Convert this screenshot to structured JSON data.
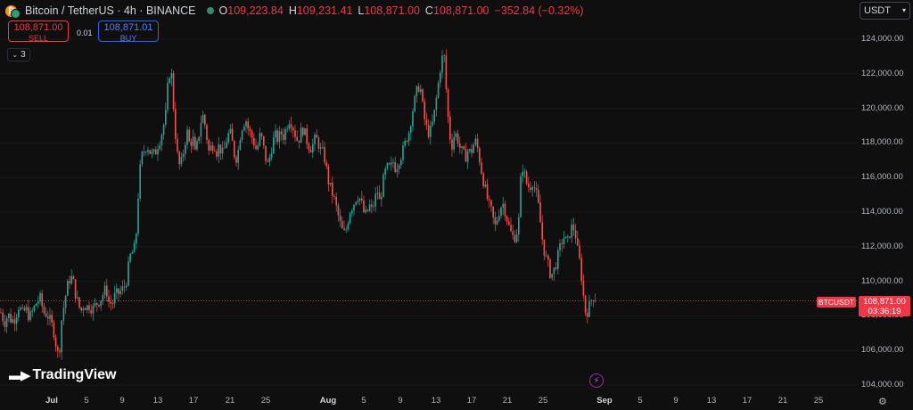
{
  "header": {
    "symbol": "Bitcoin / TetherUS · 4h · BINANCE",
    "open_key": "O",
    "open": "109,223.84",
    "high_key": "H",
    "high": "109,231.41",
    "low_key": "L",
    "low": "108,871.00",
    "close_key": "C",
    "close": "108,871.00",
    "change": "−352.84 (−0.32%)"
  },
  "trade": {
    "sell_price": "108,871.00",
    "sell_label": "SELL",
    "spread": "0.01",
    "buy_price": "108,871.01",
    "buy_label": "BUY"
  },
  "indicators_count": "3",
  "currency": "USDT",
  "price_tag": {
    "symbol": "BTCUSDT",
    "price": "108,871.00",
    "countdown": "03:36:19"
  },
  "logo_text": "TradingView",
  "colors": {
    "up": "#26a69a",
    "down": "#ef5350",
    "background": "#0f0f0f"
  },
  "chart_data": {
    "type": "candlestick",
    "y_ticks": [
      "124,000.00",
      "122,000.00",
      "120,000.00",
      "118,000.00",
      "116,000.00",
      "114,000.00",
      "112,000.00",
      "110,000.00",
      "108,000.00",
      "106,000.00",
      "104,000.00"
    ],
    "ylim": [
      104000,
      125000
    ],
    "x_ticks": [
      {
        "label": "Jul",
        "bold": true
      },
      {
        "label": "5"
      },
      {
        "label": "9"
      },
      {
        "label": "13"
      },
      {
        "label": "17"
      },
      {
        "label": "21"
      },
      {
        "label": "25"
      },
      {
        "label": "Aug",
        "bold": true
      },
      {
        "label": "5"
      },
      {
        "label": "9"
      },
      {
        "label": "13"
      },
      {
        "label": "17"
      },
      {
        "label": "21"
      },
      {
        "label": "25"
      },
      {
        "label": "Sep",
        "bold": true
      },
      {
        "label": "5"
      },
      {
        "label": "9"
      },
      {
        "label": "13"
      },
      {
        "label": "17"
      },
      {
        "label": "21"
      },
      {
        "label": "25"
      }
    ],
    "last_price": 108871,
    "close_path": [
      [
        1,
        108200
      ],
      [
        5,
        107600
      ],
      [
        9,
        108100
      ],
      [
        13,
        107700
      ],
      [
        17,
        107900
      ],
      [
        21,
        108600
      ],
      [
        25,
        108100
      ],
      [
        29,
        108400
      ],
      [
        33,
        107900
      ],
      [
        37,
        108300
      ],
      [
        41,
        108800
      ],
      [
        45,
        109000
      ],
      [
        49,
        108200
      ],
      [
        53,
        108100
      ],
      [
        57,
        107600
      ],
      [
        60,
        107200
      ],
      [
        63,
        106300
      ],
      [
        66,
        105500
      ],
      [
        69,
        107700
      ],
      [
        72,
        108700
      ],
      [
        75,
        109600
      ],
      [
        79,
        110300
      ],
      [
        82,
        110000
      ],
      [
        85,
        109200
      ],
      [
        88,
        108600
      ],
      [
        91,
        108300
      ],
      [
        94,
        108700
      ],
      [
        97,
        108500
      ],
      [
        100,
        108600
      ],
      [
        104,
        108400
      ],
      [
        108,
        108700
      ],
      [
        112,
        108900
      ],
      [
        116,
        109300
      ],
      [
        119,
        109600
      ],
      [
        122,
        108800
      ],
      [
        126,
        108700
      ],
      [
        129,
        109200
      ],
      [
        133,
        109300
      ],
      [
        137,
        109500
      ],
      [
        141,
        109800
      ],
      [
        144,
        110800
      ],
      [
        147,
        111700
      ],
      [
        150,
        111600
      ],
      [
        153,
        112900
      ],
      [
        156,
        116000
      ],
      [
        159,
        117200
      ],
      [
        162,
        117600
      ],
      [
        165,
        117900
      ],
      [
        168,
        117500
      ],
      [
        171,
        117300
      ],
      [
        174,
        117400
      ],
      [
        177,
        117900
      ],
      [
        180,
        118300
      ],
      [
        183,
        118900
      ],
      [
        186,
        119700
      ],
      [
        189,
        121900
      ],
      [
        192,
        122200
      ],
      [
        195,
        119800
      ],
      [
        198,
        117600
      ],
      [
        201,
        116700
      ],
      [
        204,
        116900
      ],
      [
        207,
        118000
      ],
      [
        210,
        118600
      ],
      [
        213,
        117800
      ],
      [
        216,
        118400
      ],
      [
        219,
        117300
      ],
      [
        222,
        118100
      ],
      [
        225,
        119200
      ],
      [
        228,
        119600
      ],
      [
        231,
        118700
      ],
      [
        234,
        117500
      ],
      [
        237,
        117800
      ],
      [
        240,
        118000
      ],
      [
        243,
        117500
      ],
      [
        246,
        117900
      ],
      [
        249,
        117300
      ],
      [
        252,
        117700
      ],
      [
        255,
        118400
      ],
      [
        258,
        118600
      ],
      [
        261,
        117900
      ],
      [
        264,
        117000
      ],
      [
        267,
        117500
      ],
      [
        270,
        118700
      ],
      [
        273,
        119200
      ],
      [
        276,
        119300
      ],
      [
        279,
        118700
      ],
      [
        282,
        118400
      ],
      [
        285,
        118000
      ],
      [
        288,
        117500
      ],
      [
        291,
        118400
      ],
      [
        294,
        118200
      ],
      [
        297,
        117300
      ],
      [
        300,
        116700
      ],
      [
        303,
        117300
      ],
      [
        306,
        118100
      ],
      [
        309,
        118400
      ],
      [
        312,
        118200
      ],
      [
        315,
        118600
      ],
      [
        318,
        118400
      ],
      [
        321,
        118900
      ],
      [
        324,
        119400
      ],
      [
        327,
        119200
      ],
      [
        330,
        118700
      ],
      [
        333,
        118200
      ],
      [
        336,
        118300
      ],
      [
        339,
        118900
      ],
      [
        342,
        118500
      ],
      [
        345,
        118000
      ],
      [
        348,
        117700
      ],
      [
        351,
        117900
      ],
      [
        354,
        118300
      ],
      [
        357,
        118000
      ],
      [
        360,
        117500
      ],
      [
        363,
        117400
      ],
      [
        366,
        116500
      ],
      [
        369,
        115600
      ],
      [
        372,
        115200
      ],
      [
        375,
        114700
      ],
      [
        378,
        114100
      ],
      [
        381,
        113400
      ],
      [
        384,
        112900
      ],
      [
        387,
        112700
      ],
      [
        390,
        113500
      ],
      [
        393,
        114200
      ],
      [
        396,
        114400
      ],
      [
        399,
        114800
      ],
      [
        402,
        115000
      ],
      [
        405,
        114600
      ],
      [
        408,
        114000
      ],
      [
        411,
        113800
      ],
      [
        414,
        114400
      ],
      [
        417,
        114100
      ],
      [
        420,
        114600
      ],
      [
        423,
        115300
      ],
      [
        426,
        114500
      ],
      [
        429,
        115600
      ],
      [
        432,
        116300
      ],
      [
        435,
        116600
      ],
      [
        438,
        116500
      ],
      [
        441,
        116900
      ],
      [
        444,
        116500
      ],
      [
        447,
        117000
      ],
      [
        450,
        117300
      ],
      [
        453,
        117700
      ],
      [
        456,
        118300
      ],
      [
        459,
        118700
      ],
      [
        462,
        119700
      ],
      [
        465,
        120400
      ],
      [
        468,
        121100
      ],
      [
        471,
        121400
      ],
      [
        474,
        120100
      ],
      [
        477,
        119100
      ],
      [
        480,
        118600
      ],
      [
        483,
        118700
      ],
      [
        486,
        119300
      ],
      [
        489,
        120400
      ],
      [
        492,
        121600
      ],
      [
        495,
        122800
      ],
      [
        498,
        123100
      ],
      [
        501,
        120600
      ],
      [
        504,
        118500
      ],
      [
        507,
        117900
      ],
      [
        510,
        118600
      ],
      [
        513,
        118300
      ],
      [
        516,
        117700
      ],
      [
        519,
        117400
      ],
      [
        522,
        117200
      ],
      [
        525,
        117600
      ],
      [
        528,
        117400
      ],
      [
        531,
        117900
      ],
      [
        534,
        118100
      ],
      [
        537,
        117300
      ],
      [
        540,
        116400
      ],
      [
        543,
        115600
      ],
      [
        546,
        114900
      ],
      [
        549,
        114300
      ],
      [
        552,
        113900
      ],
      [
        555,
        113100
      ],
      [
        558,
        113700
      ],
      [
        561,
        114300
      ],
      [
        564,
        114500
      ],
      [
        567,
        114000
      ],
      [
        570,
        113300
      ],
      [
        573,
        112800
      ],
      [
        576,
        112500
      ],
      [
        579,
        112700
      ],
      [
        582,
        113600
      ],
      [
        585,
        116900
      ],
      [
        588,
        116200
      ],
      [
        591,
        115600
      ],
      [
        594,
        115400
      ],
      [
        597,
        115800
      ],
      [
        600,
        115300
      ],
      [
        603,
        114700
      ],
      [
        606,
        113400
      ],
      [
        609,
        112100
      ],
      [
        612,
        111400
      ],
      [
        615,
        110900
      ],
      [
        618,
        110300
      ],
      [
        621,
        110600
      ],
      [
        624,
        111100
      ],
      [
        627,
        111700
      ],
      [
        630,
        112300
      ],
      [
        633,
        112600
      ],
      [
        636,
        112100
      ],
      [
        639,
        112800
      ],
      [
        642,
        113200
      ],
      [
        645,
        112900
      ],
      [
        648,
        111700
      ],
      [
        651,
        110900
      ],
      [
        654,
        109300
      ],
      [
        657,
        108100
      ],
      [
        660,
        108400
      ],
      [
        663,
        108900
      ],
      [
        666,
        109200
      ],
      [
        669,
        108871
      ]
    ]
  }
}
